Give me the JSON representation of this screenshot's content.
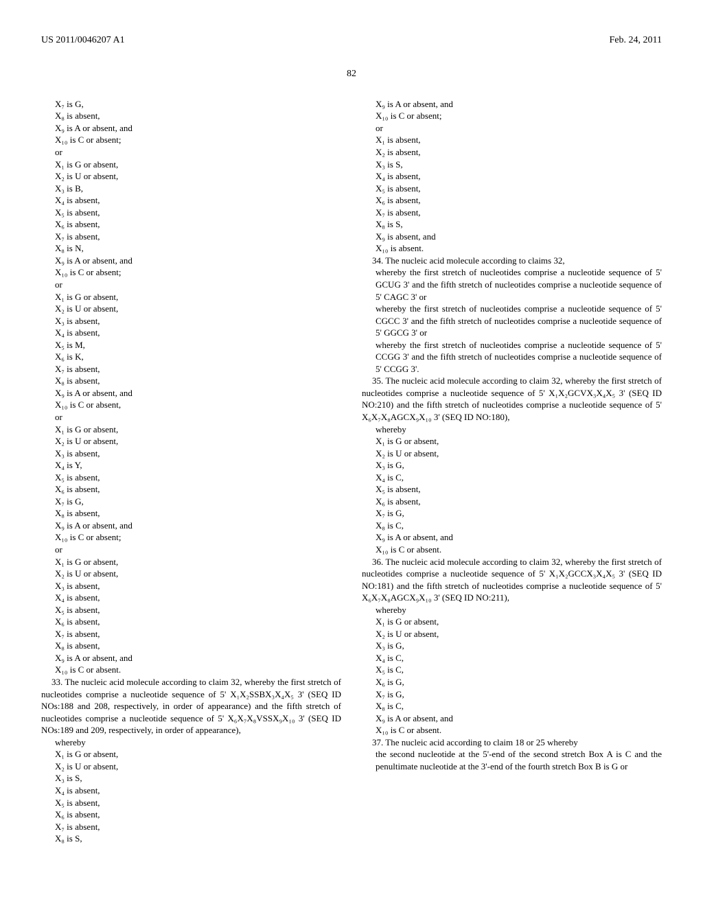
{
  "header_left": "US 2011/0046207 A1",
  "header_right": "Feb. 24, 2011",
  "page_number": "82",
  "left_column": {
    "block1": [
      "X₇ is G,",
      "X₈ is absent,",
      "X₉ is A or absent, and",
      "X₁₀ is C or absent;",
      "or",
      "X₁ is G or absent,",
      "X₂ is U or absent,",
      "X₃ is B,",
      "X₄ is absent,",
      "X₅ is absent,",
      "X₆ is absent,",
      "X₇ is absent,",
      "X₈ is N,",
      "X₉ is A or absent, and",
      "X₁₀ is C or absent;",
      "or",
      "X₁ is G or absent,",
      "X₂ is U or absent,",
      "X₃ is absent,",
      "X₄ is absent,",
      "X₅ is M,",
      "X₆ is K,",
      "X₇ is absent,",
      "X₈ is absent,",
      "X₉ is A or absent, and",
      "X₁₀ is C or absent,",
      "or",
      "X₁ is G or absent,",
      "X₂ is U or absent,",
      "X₃ is absent,",
      "X₄ is Y,",
      "X₅ is absent,",
      "X₆ is absent,",
      "X₇ is G,",
      "X₈ is absent,",
      "X₉ is A or absent, and",
      "X₁₀ is C or absent;",
      "or",
      "X₁ is G or absent,",
      "X₂ is U or absent,",
      "X₃ is absent,",
      "X₄ is absent,",
      "X₅ is absent,",
      "X₆ is absent,",
      "X₇ is absent,",
      "X₈ is absent,",
      "X₉ is A or absent, and",
      "X₁₀ is C or absent."
    ],
    "claim33": "33. The nucleic acid molecule according to claim 32, whereby the first stretch of nucleotides comprise a nucleotide sequence of 5' X₁X₂SSBX₃X₄X₅ 3' (SEQ ID NOs:188 and 208, respectively, in order of appearance) and the fifth stretch of nucleotides comprise a nucleotide sequence of 5' X₆X₇X₈VSSX₉X₁₀ 3' (SEQ ID NOs:189 and 209, respectively, in order of appearance),",
    "block2": [
      "whereby",
      "X₁ is G or absent,",
      "X₂ is U or absent,",
      "X₃ is S,",
      "X₄ is absent,",
      "X₅ is absent,",
      "X₆ is absent,",
      "X₇ is absent,",
      "X₈ is S,"
    ]
  },
  "right_column": {
    "block1": [
      "X₉ is A or absent, and",
      "X₁₀ is C or absent;",
      "or",
      "X₁ is absent,",
      "X₂ is absent,",
      "X₃ is S,",
      "X₄ is absent,",
      "X₅ is absent,",
      "X₆ is absent,",
      "X₇ is absent,",
      "X₈ is S,",
      "X₉ is absent, and",
      "X₁₀ is absent."
    ],
    "claim34_intro": "34. The nucleic acid molecule according to claims 32,",
    "claim34_p1": "whereby the first stretch of nucleotides comprise a nucleotide sequence of 5' GCUG 3' and the fifth stretch of nucleotides comprise a nucleotide sequence of 5' CAGC 3' or",
    "claim34_p2": "whereby the first stretch of nucleotides comprise a nucleotide sequence of 5' CGCC 3' and the fifth stretch of nucleotides comprise a nucleotide sequence of 5' GGCG 3' or",
    "claim34_p3": "whereby the first stretch of nucleotides comprise a nucleotide sequence of 5' CCGG 3' and the fifth stretch of nucleotides comprise a nucleotide sequence of 5' CCGG 3'.",
    "claim35": "35. The nucleic acid molecule according to claim 32, whereby the first stretch of nucleotides comprise a nucleotide sequence of 5' X₁X₂GCVX₃X₄X₅ 3' (SEQ ID NO:210) and the fifth stretch of nucleotides comprise a nucleotide sequence of 5' X₆X₇X₈AGCX₉X₁₀ 3' (SEQ ID NO:180),",
    "block35": [
      "whereby",
      "X₁ is G or absent,",
      "X₂ is U or absent,",
      "X₃ is G,",
      "X₄ is C,",
      "X₅ is absent,",
      "X₆ is absent,",
      "X₇ is G,",
      "X₈ is C,",
      "X₉ is A or absent, and",
      "X₁₀ is C or absent."
    ],
    "claim36": "36. The nucleic acid molecule according to claim 32, whereby the first stretch of nucleotides comprise a nucleotide sequence of 5' X₁X₂GCCX₃X₄X₅ 3' (SEQ ID NO:181) and the fifth stretch of nucleotides comprise a nucleotide sequence of 5' X₆X₇X₈AGCX₉X₁₀ 3' (SEQ ID NO:211),",
    "block36": [
      "whereby",
      "X₁ is G or absent,",
      "X₂ is U or absent,",
      "X₃ is G,",
      "X₄ is C,",
      "X₅ is C,",
      "X₆ is G,",
      "X₇ is G,",
      "X₈ is C,",
      "X₉ is A or absent, and",
      "X₁₀ is C or absent."
    ],
    "claim37": "37. The nucleic acid according to claim 18 or 25 whereby",
    "claim37_p1": "the second nucleotide at the 5'-end of the second stretch Box A is C and the penultimate nucleotide at the 3'-end of the fourth stretch Box B is G or"
  }
}
